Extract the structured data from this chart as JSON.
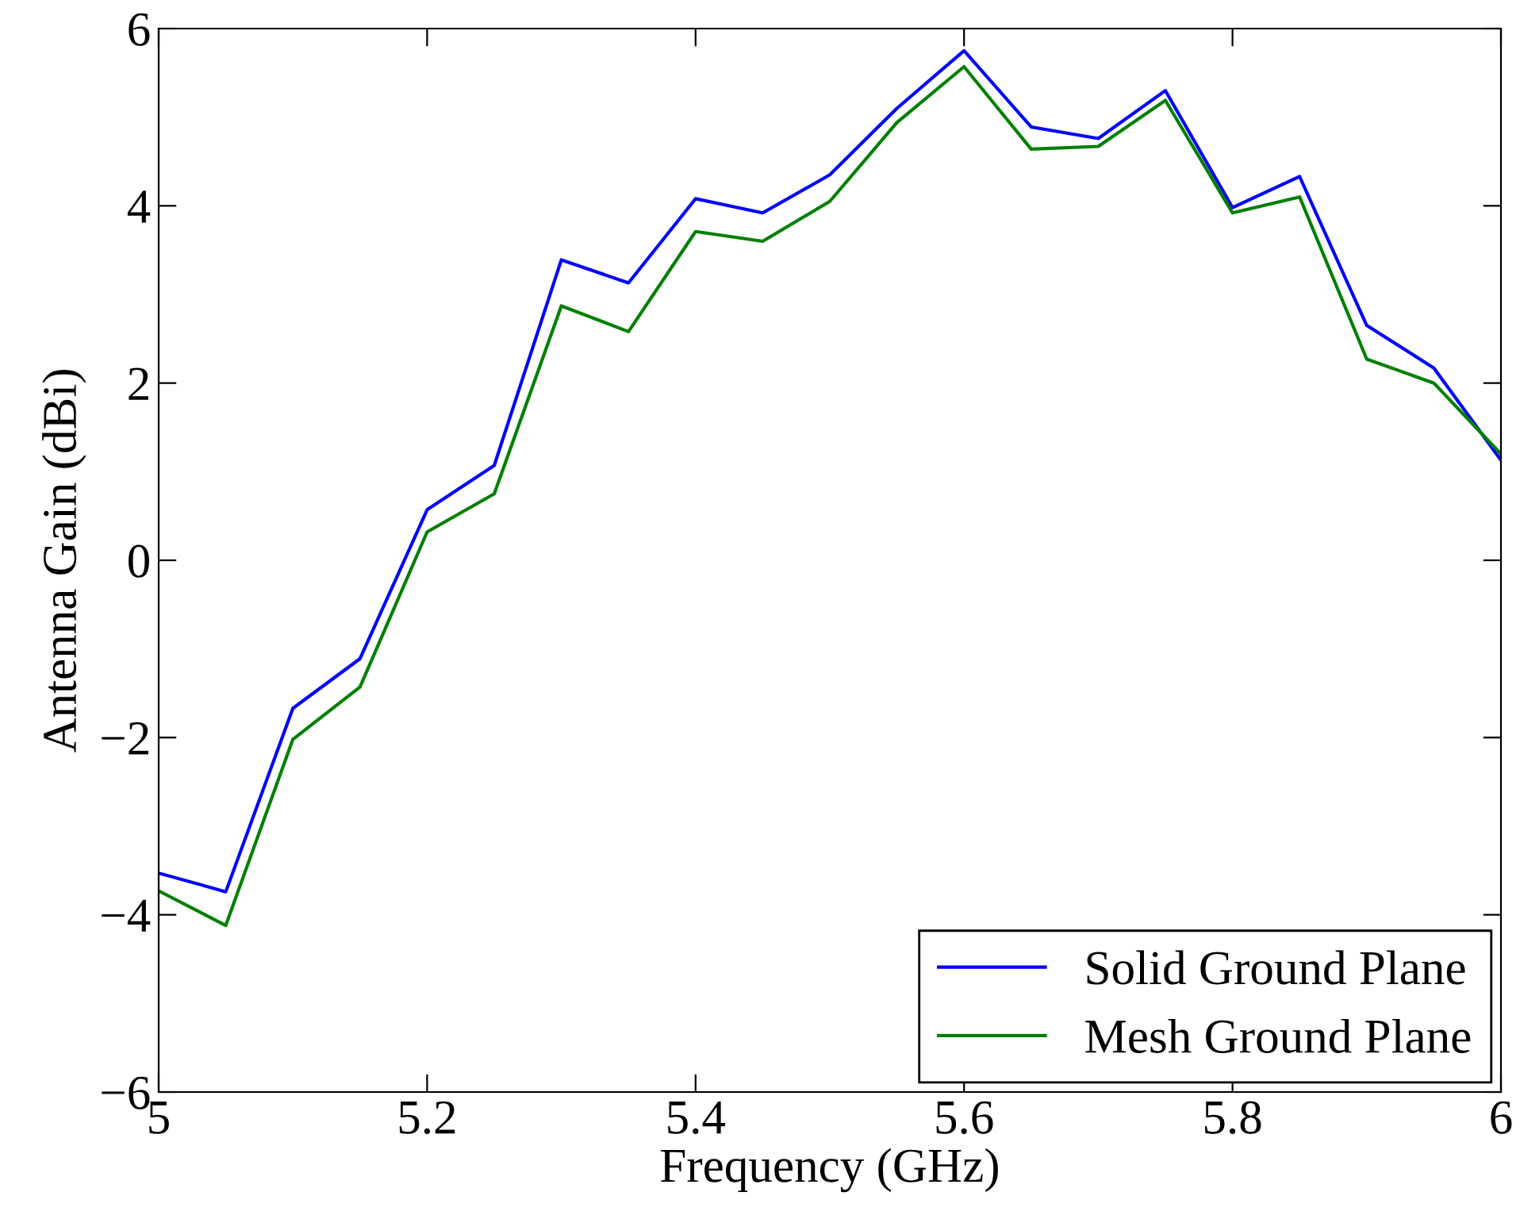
{
  "chart_data": {
    "type": "line",
    "xlabel": "Frequency (GHz)",
    "ylabel": "Antenna Gain (dBi)",
    "x": [
      5.0,
      5.05,
      5.1,
      5.15,
      5.2,
      5.25,
      5.3,
      5.35,
      5.4,
      5.45,
      5.5,
      5.55,
      5.6,
      5.65,
      5.7,
      5.75,
      5.8,
      5.85,
      5.9,
      5.95,
      6.0
    ],
    "series": [
      {
        "name": "Solid Ground Plane",
        "color": "#0000ff",
        "values": [
          -3.53,
          -3.74,
          -1.67,
          -1.11,
          0.57,
          1.07,
          3.39,
          3.13,
          4.08,
          3.92,
          4.35,
          5.1,
          5.75,
          4.89,
          4.76,
          5.3,
          3.98,
          4.33,
          2.65,
          2.17,
          1.13
        ]
      },
      {
        "name": "Mesh Ground Plane",
        "color": "#008000",
        "values": [
          -3.73,
          -4.12,
          -2.02,
          -1.43,
          0.32,
          0.75,
          2.87,
          2.58,
          3.71,
          3.6,
          4.05,
          4.94,
          5.57,
          4.64,
          4.67,
          5.19,
          3.92,
          4.1,
          2.27,
          2.0,
          1.2
        ]
      }
    ],
    "xlim": [
      5,
      6
    ],
    "xticks": [
      5,
      5.2,
      5.4,
      5.6,
      5.8,
      6
    ],
    "ylim": [
      -6,
      6
    ],
    "yticks": [
      {
        "value": -6,
        "label": "−6"
      },
      {
        "value": -4,
        "label": "−4"
      },
      {
        "value": -2,
        "label": "−2"
      },
      0,
      2,
      4,
      6
    ],
    "legend": "lower right",
    "grid": false,
    "marker": "none",
    "line_style": "solid"
  }
}
